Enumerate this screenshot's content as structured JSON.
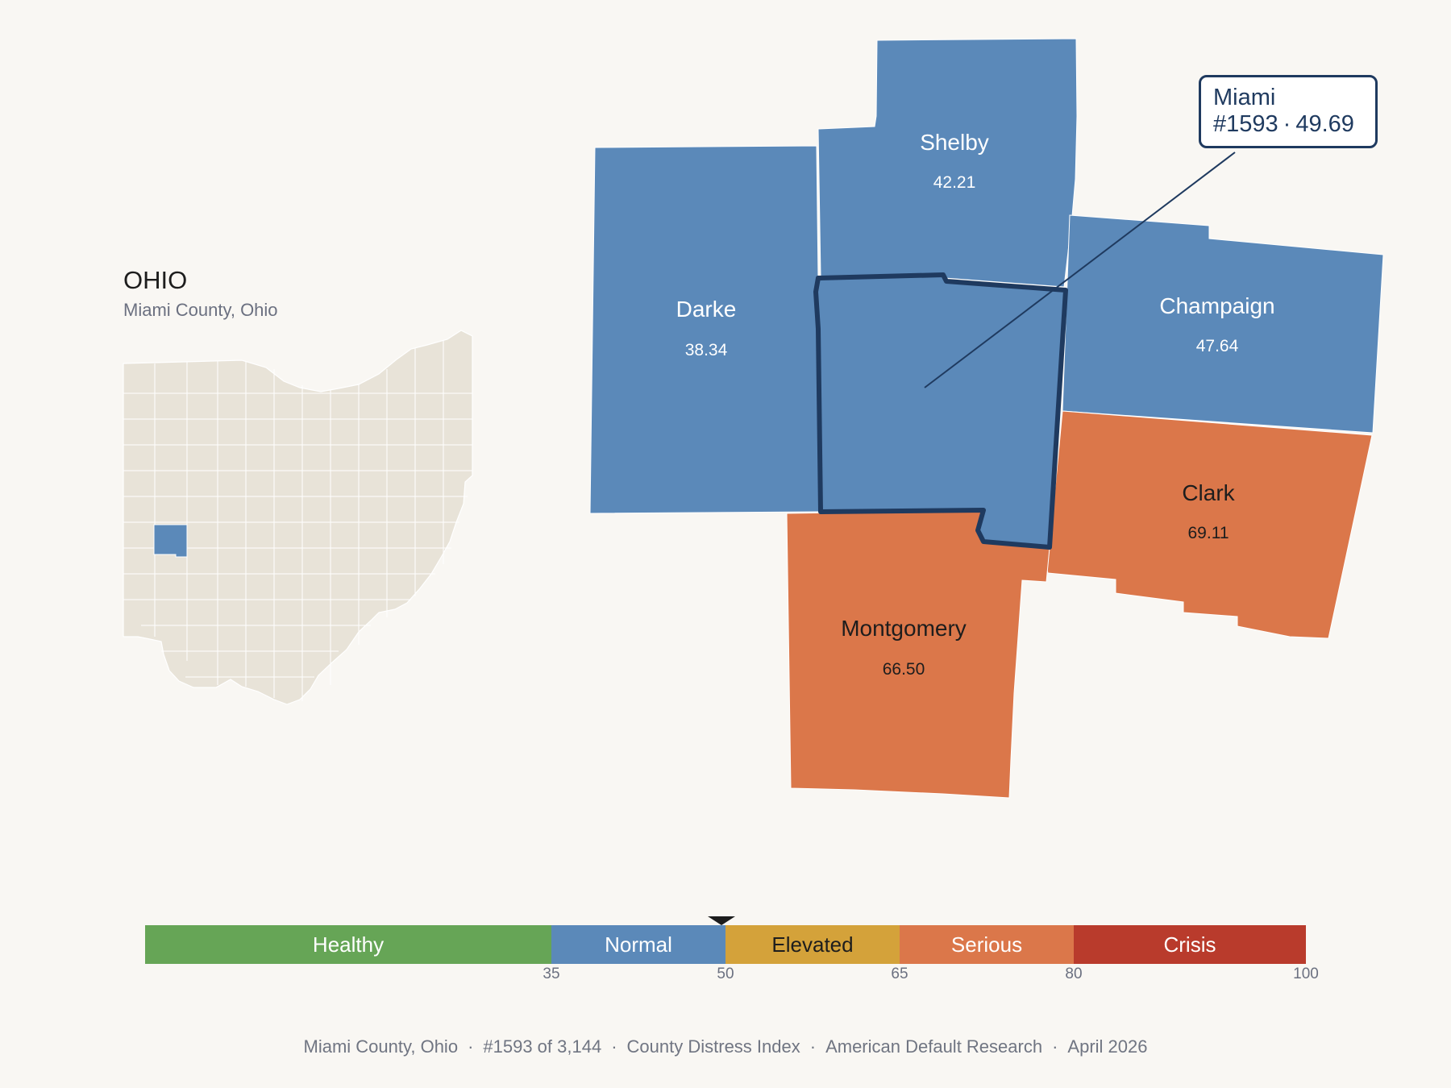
{
  "state": {
    "title": "OHIO",
    "subtitle": "Miami County, Ohio"
  },
  "focus": {
    "name": "Miami",
    "rank": "#1593",
    "score": "49.69",
    "color": "#5b89b9",
    "outline_color": "#1f3a5f"
  },
  "neighbors": [
    {
      "name": "Shelby",
      "value": "42.21",
      "category": "Normal"
    },
    {
      "name": "Darke",
      "value": "38.34",
      "category": "Normal"
    },
    {
      "name": "Champaign",
      "value": "47.64",
      "category": "Normal"
    },
    {
      "name": "Clark",
      "value": "69.11",
      "category": "Serious"
    },
    {
      "name": "Montgomery",
      "value": "66.50",
      "category": "Serious"
    }
  ],
  "scale": {
    "segments": [
      {
        "label": "Healthy",
        "from": 0,
        "to": 35,
        "color": "#66a556",
        "text_color": "#ffffff"
      },
      {
        "label": "Normal",
        "from": 35,
        "to": 50,
        "color": "#5b89b9",
        "text_color": "#ffffff"
      },
      {
        "label": "Elevated",
        "from": 50,
        "to": 65,
        "color": "#d4a23a",
        "text_color": "#1d1d1d"
      },
      {
        "label": "Serious",
        "from": 65,
        "to": 80,
        "color": "#db774a",
        "text_color": "#ffffff"
      },
      {
        "label": "Crisis",
        "from": 80,
        "to": 100,
        "color": "#b93b2c",
        "text_color": "#ffffff"
      }
    ],
    "ticks": [
      "35",
      "50",
      "65",
      "80",
      "100"
    ],
    "marker_value": 49.69
  },
  "footer": {
    "parts": [
      "Miami County, Ohio",
      "#1593 of 3,144",
      "County Distress Index",
      "American Default Research",
      "April 2026"
    ],
    "separator": "·"
  },
  "colors": {
    "background": "#f9f7f3",
    "state_fill": "#e8e3d8",
    "normal": "#5b89b9",
    "serious": "#db774a"
  }
}
